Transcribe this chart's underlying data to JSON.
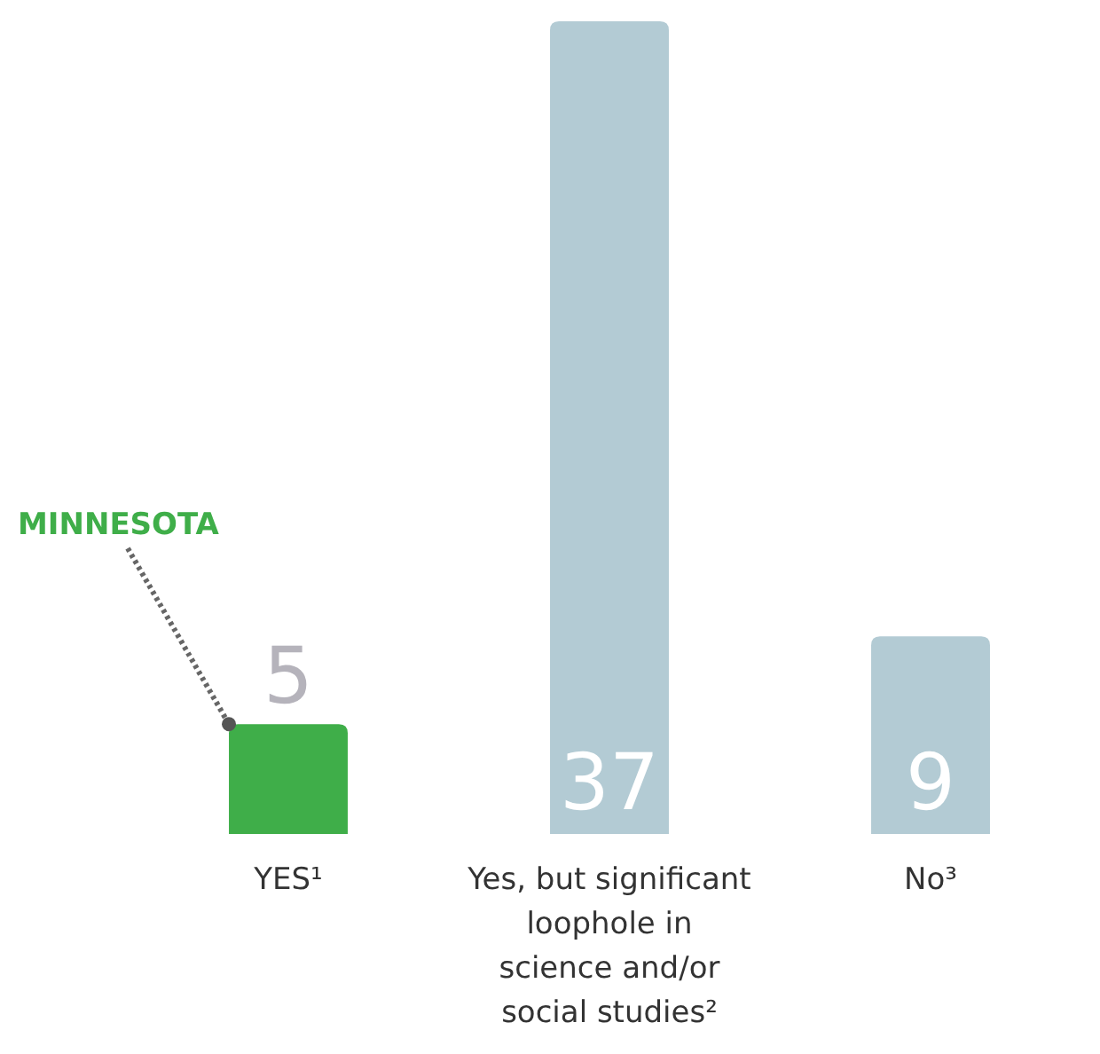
{
  "chart_data": {
    "type": "bar",
    "categories": [
      "YES¹",
      "Yes, but significant loophole in science and/or social studies²",
      "No³"
    ],
    "values": [
      5,
      37,
      9
    ],
    "colors": [
      "#3fae49",
      "#b3cbd4",
      "#b3cbd4"
    ],
    "data_labels": true,
    "annotations": [
      "MINNESOTA"
    ]
  }
}
